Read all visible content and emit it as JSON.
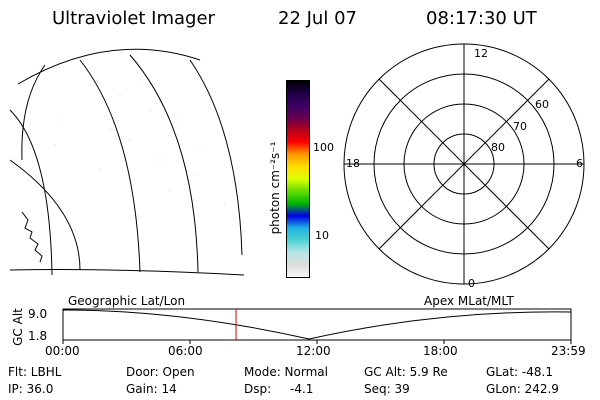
{
  "header": {
    "title": "Ultraviolet Imager",
    "date": "22 Jul 07",
    "time": "08:17:30 UT"
  },
  "colorbar": {
    "unit_label": "photon cm⁻²s⁻¹",
    "ticks": [
      "100",
      "10"
    ],
    "colors": [
      "#f7f7f7",
      "#dcdcdc",
      "#b9e6e6",
      "#4ed2d2",
      "#1fb0e0",
      "#0000e6",
      "#00b400",
      "#64dc00",
      "#dcff00",
      "#ffdc00",
      "#ff9a00",
      "#ff0000",
      "#b4001e",
      "#640050",
      "#3c0064",
      "#1e0046",
      "#000000"
    ]
  },
  "polar_plot": {
    "mlt_labels": {
      "top": "12",
      "left": "18",
      "right": "6",
      "bottom": "0"
    },
    "lat_labels": [
      "60",
      "70",
      "80"
    ]
  },
  "timeline": {
    "left_label": "Geographic Lat/Lon",
    "right_label": "Apex MLat/MLT",
    "y_axis_title": "GC Alt",
    "y_ticks": [
      "9.0",
      "1.8"
    ],
    "x_ticks": [
      "00:00",
      "06:00",
      "12:00",
      "18:00",
      "23:59"
    ],
    "current_marker_color": "#e00000"
  },
  "status": {
    "flt": "Flt: LBHL",
    "ip": "IP: 36.0",
    "door": "Door: Open",
    "gain": "Gain: 14",
    "mode": "Mode: Normal",
    "dsp": "Dsp:",
    "dsp_value": "-4.1",
    "gc_alt": "GC Alt: 5.9 Re",
    "seq": "Seq: 39",
    "glat": "GLat: -48.1",
    "glon": "GLon: 242.9"
  }
}
